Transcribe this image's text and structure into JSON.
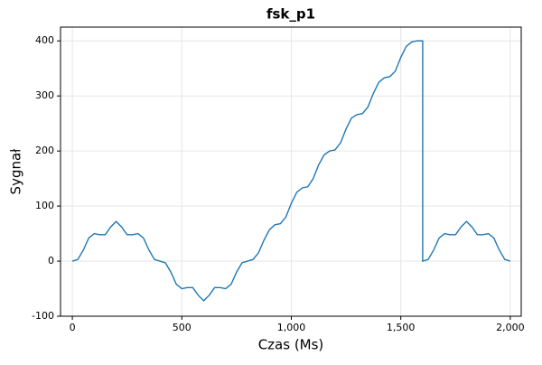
{
  "chart_data": {
    "type": "line",
    "title": "fsk_p1",
    "x_label": "Czas (Ms)",
    "y_label": "Sygnał",
    "x": [
      0,
      25,
      50,
      75,
      100,
      125,
      150,
      175,
      200,
      225,
      250,
      275,
      300,
      325,
      350,
      375,
      400,
      425,
      450,
      475,
      500,
      525,
      550,
      575,
      600,
      625,
      650,
      675,
      700,
      725,
      750,
      775,
      800,
      825,
      850,
      875,
      900,
      925,
      950,
      975,
      1000,
      1025,
      1050,
      1075,
      1100,
      1125,
      1150,
      1175,
      1200,
      1225,
      1250,
      1275,
      1300,
      1325,
      1350,
      1375,
      1400,
      1425,
      1450,
      1475,
      1500,
      1525,
      1550,
      1575,
      1600,
      1600,
      1625,
      1650,
      1675,
      1700,
      1725,
      1750,
      1775,
      1800,
      1825,
      1850,
      1875,
      1900,
      1925,
      1950,
      1975,
      2000
    ],
    "series": [
      {
        "name": "fsk_p1",
        "color": "#2077b4",
        "values": [
          0,
          3,
          20,
          42,
          50,
          48,
          48,
          62,
          72,
          62,
          48,
          48,
          50,
          42,
          20,
          3,
          0,
          -3,
          -20,
          -42,
          -50,
          -48,
          -48,
          -62,
          -72,
          -62,
          -48,
          -48,
          -50,
          -42,
          -20,
          -3,
          0,
          3,
          15,
          38,
          57,
          66,
          68,
          80,
          105,
          125,
          133,
          135,
          150,
          175,
          193,
          200,
          202,
          215,
          240,
          260,
          266,
          268,
          280,
          305,
          325,
          333,
          335,
          345,
          370,
          390,
          398,
          400,
          400,
          0,
          3,
          20,
          42,
          50,
          48,
          48,
          62,
          72,
          62,
          48,
          48,
          50,
          42,
          20,
          3,
          0
        ]
      }
    ],
    "xlim": [
      -54,
      2050
    ],
    "ylim": [
      -100,
      425
    ],
    "xticks": [
      0,
      500,
      {
        "value": 1000,
        "label": "1,000"
      },
      {
        "value": 1500,
        "label": "1,500"
      },
      {
        "value": 2000,
        "label": "2,000"
      }
    ],
    "yticks": [
      -100,
      0,
      100,
      200,
      300,
      400
    ],
    "grid": true
  }
}
